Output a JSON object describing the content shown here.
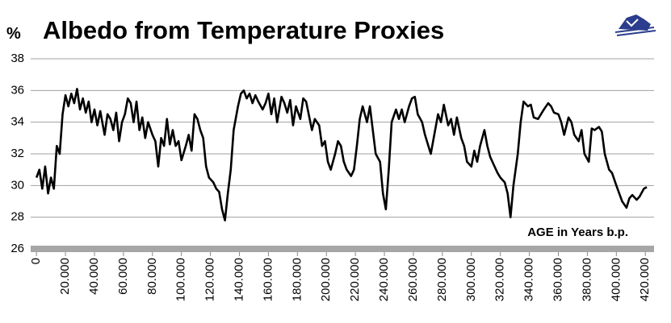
{
  "chart_data": {
    "type": "line",
    "title": "Albedo from Temperature Proxies",
    "y_label": "%",
    "annotation": "AGE in Years b.p.",
    "color": "#000000",
    "x": [
      0,
      2000,
      4000,
      6000,
      8000,
      10000,
      12000,
      14000,
      16000,
      18000,
      20000,
      22000,
      24000,
      26000,
      28000,
      30000,
      32000,
      34000,
      36000,
      38000,
      40000,
      42000,
      44000,
      47000,
      49000,
      51000,
      53000,
      55000,
      57000,
      59000,
      61000,
      63000,
      65000,
      67000,
      69000,
      71000,
      73000,
      75000,
      77000,
      80000,
      82000,
      84000,
      86000,
      88000,
      90000,
      92000,
      94000,
      96000,
      98000,
      100000,
      103000,
      105000,
      107000,
      109000,
      111000,
      113000,
      115000,
      117000,
      119000,
      122000,
      124000,
      126000,
      128000,
      130000,
      132000,
      134000,
      136000,
      139000,
      141000,
      143000,
      145000,
      147000,
      149000,
      151000,
      153000,
      156000,
      158000,
      160000,
      162000,
      164000,
      166000,
      169000,
      171000,
      173000,
      175000,
      177000,
      179000,
      182000,
      184000,
      186000,
      188000,
      190000,
      192000,
      195000,
      197000,
      199000,
      201000,
      203000,
      206000,
      208000,
      210000,
      212000,
      214000,
      217000,
      219000,
      221000,
      223000,
      225000,
      228000,
      230000,
      232000,
      234000,
      237000,
      239000,
      241000,
      243000,
      245000,
      248000,
      250000,
      252000,
      254000,
      257000,
      259000,
      261000,
      263000,
      266000,
      268000,
      270000,
      272000,
      275000,
      277000,
      279000,
      281000,
      284000,
      286000,
      288000,
      290000,
      293000,
      295000,
      297000,
      300000,
      302000,
      304000,
      306000,
      309000,
      311000,
      313000,
      316000,
      318000,
      320000,
      323000,
      325000,
      327000,
      329000,
      332000,
      334000,
      336000,
      339000,
      341000,
      343000,
      346000,
      348000,
      350000,
      353000,
      355000,
      357000,
      360000,
      362000,
      364000,
      367000,
      369000,
      371000,
      374000,
      376000,
      378000,
      381000,
      383000,
      385000,
      388000,
      390000,
      392000,
      395000,
      397000,
      400000,
      402000,
      404000,
      407000,
      409000,
      411000,
      414000,
      416000,
      419000,
      421000
    ],
    "values": [
      30.5,
      31,
      29.8,
      31.2,
      29.5,
      30.5,
      29.8,
      32.5,
      32,
      34.5,
      35.7,
      35,
      35.8,
      35.2,
      36.1,
      34.8,
      35.5,
      34.6,
      35.3,
      34,
      34.8,
      33.8,
      34.7,
      33.2,
      34.5,
      34.2,
      33.5,
      34.6,
      32.8,
      34,
      34.5,
      35.5,
      35.2,
      34,
      35.3,
      33.5,
      34.3,
      33,
      34,
      33.2,
      32.8,
      31.2,
      33,
      32.5,
      34.2,
      32.6,
      33.5,
      32.5,
      32.8,
      31.6,
      32.5,
      33.2,
      32.2,
      34.5,
      34.2,
      33.5,
      33,
      31.2,
      30.5,
      30.2,
      29.8,
      29.6,
      28.5,
      27.8,
      29.5,
      31,
      33.5,
      35,
      35.8,
      36,
      35.5,
      35.8,
      35.2,
      35.7,
      35.3,
      34.8,
      35.2,
      35.8,
      34.5,
      35.5,
      34,
      35.6,
      35.2,
      34.6,
      35.4,
      33.8,
      35,
      34.2,
      35.5,
      35.3,
      34.4,
      33.5,
      34.2,
      33.8,
      32.5,
      32.8,
      31.5,
      31,
      32,
      32.8,
      32.5,
      31.5,
      31,
      30.6,
      31,
      32.5,
      34.2,
      35,
      34,
      35,
      33.5,
      32,
      31.5,
      29.5,
      28.5,
      31,
      34,
      34.8,
      34.2,
      34.8,
      34,
      35,
      35.5,
      35.6,
      34.5,
      34,
      33.2,
      32.6,
      32,
      33.5,
      34.5,
      34,
      35.1,
      33.8,
      34.2,
      33.2,
      34.3,
      33,
      32.5,
      31.5,
      31.2,
      32.2,
      31.5,
      32.5,
      33.5,
      32.5,
      31.8,
      31.2,
      30.8,
      30.5,
      30.2,
      29.5,
      28,
      30,
      32,
      34,
      35.3,
      35,
      35.1,
      34.3,
      34.2,
      34.5,
      34.8,
      35.2,
      35,
      34.6,
      34.5,
      34,
      33.2,
      34.3,
      34,
      33.2,
      32.8,
      33.5,
      32,
      31.5,
      33.6,
      33.5,
      33.7,
      33.4,
      32,
      31,
      30.8,
      30,
      29.5,
      29,
      28.6,
      29.2,
      29.4,
      29.1,
      29.3,
      29.8,
      29.9
    ],
    "xlim": [
      -4000,
      426000
    ],
    "xticks": [
      0,
      {
        "value": 20000,
        "label": "20.000"
      },
      {
        "value": 40000,
        "label": "40.000"
      },
      {
        "value": 60000,
        "label": "60.000"
      },
      {
        "value": 80000,
        "label": "80.000"
      },
      {
        "value": 100000,
        "label": "100.000"
      },
      {
        "value": 120000,
        "label": "120.000"
      },
      {
        "value": 140000,
        "label": "140.000"
      },
      {
        "value": 160000,
        "label": "160.000"
      },
      {
        "value": 180000,
        "label": "180.000"
      },
      {
        "value": 200000,
        "label": "200.000"
      },
      {
        "value": 220000,
        "label": "220.000"
      },
      {
        "value": 240000,
        "label": "240.000"
      },
      {
        "value": 260000,
        "label": "260.000"
      },
      {
        "value": 280000,
        "label": "280.000"
      },
      {
        "value": 300000,
        "label": "300.000"
      },
      {
        "value": 320000,
        "label": "320.000"
      },
      {
        "value": 340000,
        "label": "340.000"
      },
      {
        "value": 360000,
        "label": "360.000"
      },
      {
        "value": 380000,
        "label": "380.000"
      },
      {
        "value": 400000,
        "label": "400.000"
      },
      {
        "value": 420000,
        "label": "420.000"
      }
    ],
    "ylim": [
      26,
      38
    ],
    "yticks": [
      26,
      28,
      30,
      32,
      34,
      36,
      38
    ],
    "grid": true
  }
}
